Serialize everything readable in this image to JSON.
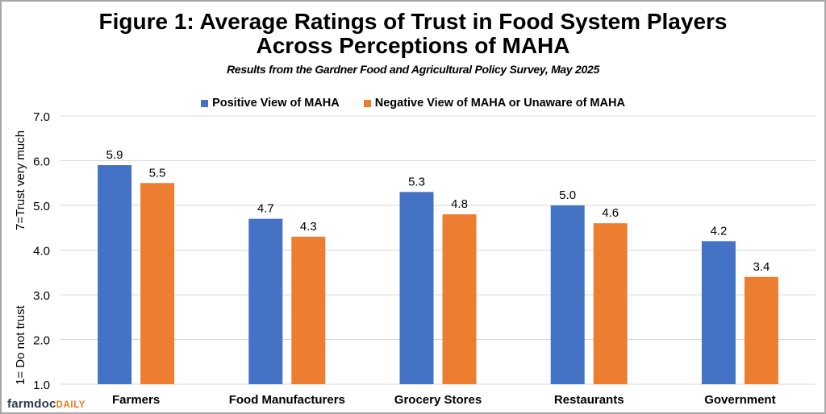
{
  "header": {
    "title_line1": "Figure 1:  Average Ratings of Trust in Food System Players",
    "title_line2": "Across Perceptions of MAHA",
    "subtitle": "Results from the Gardner Food and Agricultural Policy Survey, May 2025"
  },
  "logo": {
    "part1": "farmdoc",
    "part2": "DAILY"
  },
  "chart_data": {
    "type": "bar",
    "title": "Figure 1:  Average Ratings of Trust in Food System Players Across Perceptions of MAHA",
    "subtitle": "Results from the Gardner Food and Agricultural Policy Survey, May 2025",
    "categories": [
      "Farmers",
      "Food Manufacturers",
      "Grocery Stores",
      "Restaurants",
      "Government"
    ],
    "series": [
      {
        "name": "Positive View of MAHA",
        "color": "#4472c4",
        "values": [
          5.9,
          4.7,
          5.3,
          5.0,
          4.2
        ],
        "labels": [
          "5.9",
          "4.7",
          "5.3",
          "5.0",
          "4.2"
        ]
      },
      {
        "name": "Negative View of MAHA or Unaware of MAHA",
        "color": "#ed7d31",
        "values": [
          5.5,
          4.3,
          4.8,
          4.6,
          3.4
        ],
        "labels": [
          "5.5",
          "4.3",
          "4.8",
          "4.6",
          "3.4"
        ]
      }
    ],
    "xlabel": "",
    "ylabel_top": "7=Trust very much",
    "ylabel_bottom": "1= Do not trust",
    "ylim": [
      1.0,
      7.0
    ],
    "yticks": [
      "1.0",
      "2.0",
      "3.0",
      "4.0",
      "5.0",
      "6.0",
      "7.0"
    ],
    "grid": true,
    "legend_position": "top-center"
  }
}
